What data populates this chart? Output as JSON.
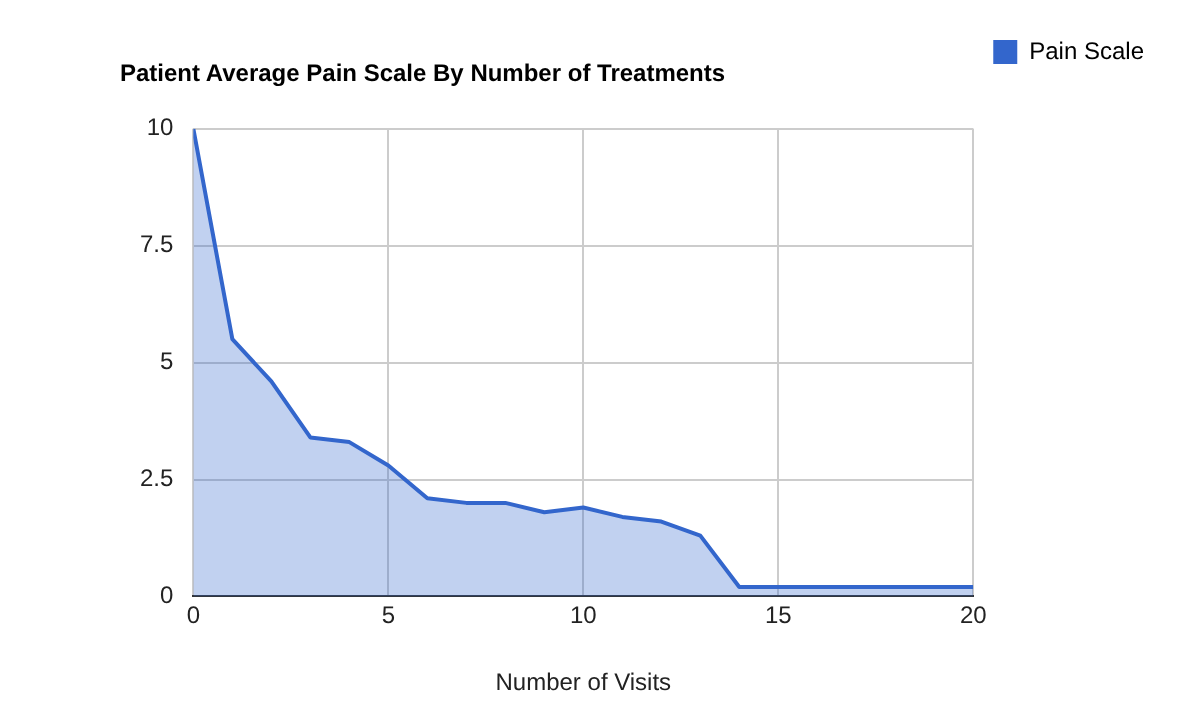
{
  "chart_data": {
    "type": "area",
    "title": "Patient Average Pain Scale By Number of Treatments",
    "xlabel": "Number of Visits",
    "x": [
      0,
      1,
      2,
      3,
      4,
      5,
      6,
      7,
      8,
      9,
      10,
      11,
      12,
      13,
      14,
      15,
      16,
      17,
      18,
      19,
      20
    ],
    "series": [
      {
        "name": "Pain Scale",
        "color": "#3366cc",
        "values": [
          10,
          5.5,
          4.6,
          3.4,
          3.3,
          2.8,
          2.1,
          2.0,
          2.0,
          1.8,
          1.9,
          1.7,
          1.6,
          1.3,
          0.2,
          0.2,
          0.2,
          0.2,
          0.2,
          0.2,
          0.2
        ]
      }
    ],
    "xlim": [
      0,
      20
    ],
    "xticks": [
      0,
      5,
      10,
      15,
      20
    ],
    "ylim": [
      0,
      10
    ],
    "yticks": [
      0,
      2.5,
      5,
      7.5,
      10
    ],
    "grid": true,
    "legend": "right",
    "marker": "none"
  }
}
